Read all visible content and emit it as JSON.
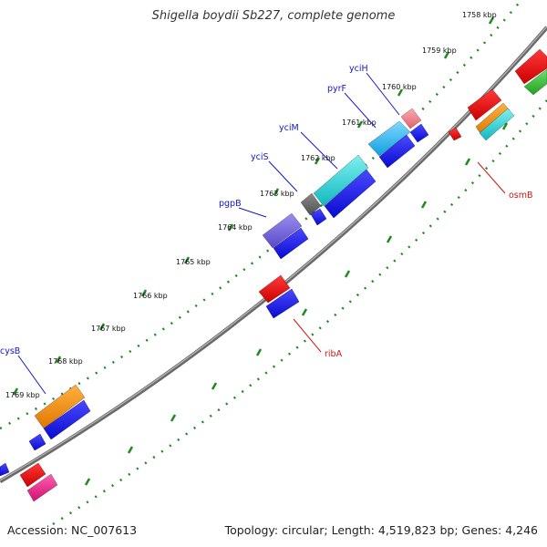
{
  "title": "Shigella boydii Sb227, complete genome",
  "footer": {
    "accession": "Accession: NC_007613",
    "stats": "Topology: circular; Length: 4,519,823 bp; Genes: 4,246"
  },
  "colors": {
    "backbone": "#8a8a8a",
    "tick": "#1f8a1f",
    "label_blue": "#1515c8",
    "label_red": "#d01515",
    "forward_cds": "#1010e0",
    "reverse_cds": "#e01010"
  },
  "tick_labels": [
    "1758 kbp",
    "1759 kbp",
    "1760 kbp",
    "1761 kbp",
    "1762 kbp",
    "1763 kbp",
    "1764 kbp",
    "1765 kbp",
    "1766 kbp",
    "1767 kbp",
    "1768 kbp",
    "1769 kbp"
  ],
  "genes": {
    "yciH": "yciH",
    "pyrF": "pyrF",
    "yciM": "yciM",
    "yciS": "yciS",
    "pgpB": "pgpB",
    "cysB": "cysB",
    "osmB": "osmB",
    "ribA": "ribA"
  }
}
